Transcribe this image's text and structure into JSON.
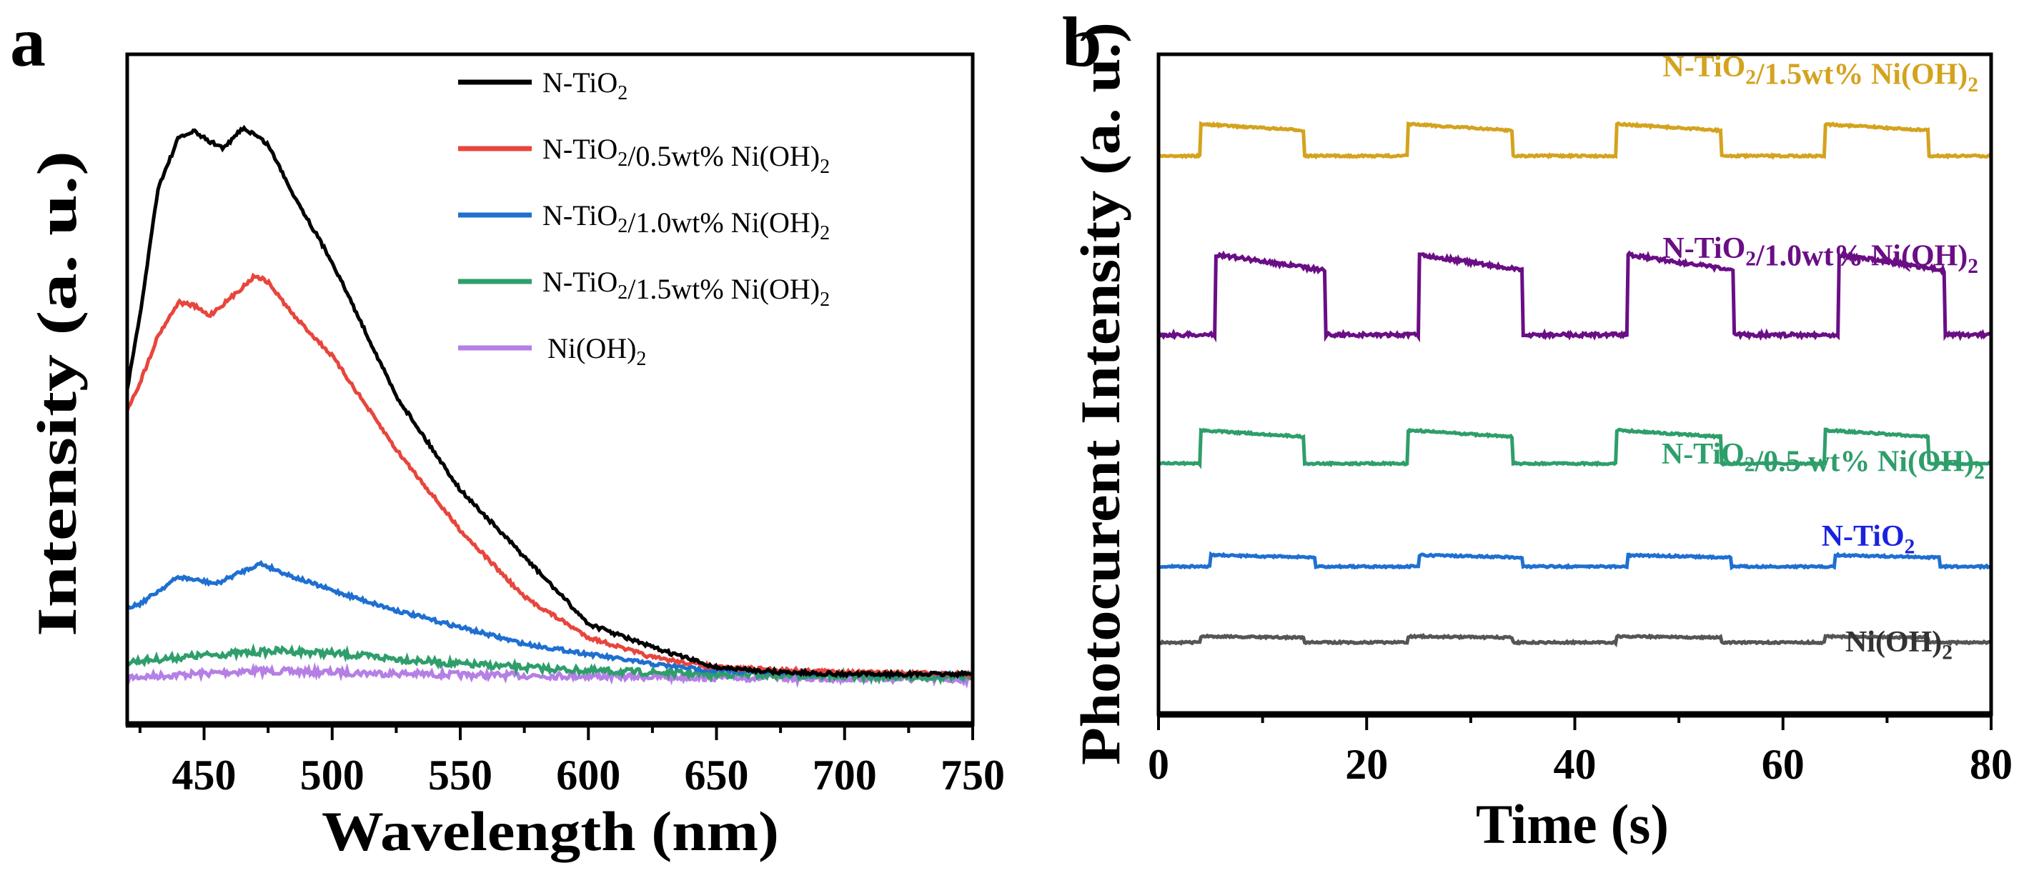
{
  "chart_data": [
    {
      "panel_label": "a",
      "type": "line",
      "xlabel": "Wavelength (nm)",
      "ylabel": "Intensity (a. u.)",
      "xlim": [
        420,
        750
      ],
      "ylim": [
        0,
        100
      ],
      "xticks": [
        450,
        500,
        550,
        600,
        650,
        700,
        750
      ],
      "legend_position": "top-right",
      "series": [
        {
          "name": "N-TiO2",
          "color": "#000000",
          "x": [
            420,
            425,
            432,
            440,
            446,
            452,
            458,
            465,
            470,
            475,
            485,
            500,
            525,
            550,
            575,
            600,
            625,
            650,
            675,
            700,
            750
          ],
          "y": [
            50,
            61,
            80,
            87.5,
            88.5,
            87,
            86,
            89,
            88,
            86.5,
            79,
            69,
            49,
            35,
            25,
            15,
            11.5,
            8.5,
            7.8,
            7.5,
            7.5
          ]
        },
        {
          "name": "N-TiO2/0.5wt% Ni(OH)2",
          "color": "#E8453C",
          "x": [
            420,
            425,
            432,
            440,
            446,
            452,
            460,
            470,
            475,
            485,
            500,
            525,
            550,
            575,
            600,
            625,
            650,
            700,
            750
          ],
          "y": [
            47,
            51,
            58,
            63,
            62.5,
            61,
            63.5,
            67,
            66,
            61,
            55,
            41,
            29,
            19,
            13,
            10,
            8.5,
            7.8,
            7.5
          ]
        },
        {
          "name": "N-TiO2/1.0wt% Ni(OH)2",
          "color": "#1F6FD1",
          "x": [
            420,
            425,
            440,
            455,
            463,
            472,
            485,
            500,
            525,
            550,
            575,
            600,
            625,
            650,
            700,
            750
          ],
          "y": [
            17.5,
            18,
            22,
            21,
            22.5,
            24,
            22,
            20,
            17,
            14.5,
            12,
            10.5,
            9,
            8,
            7.6,
            7.5
          ]
        },
        {
          "name": "N-TiO2/1.5wt% Ni(OH)2",
          "color": "#2E9E6B",
          "x": [
            420,
            425,
            450,
            480,
            500,
            525,
            550,
            575,
            600,
            650,
            700,
            750
          ],
          "y": [
            9.3,
            9.5,
            10.3,
            11,
            10.6,
            9.8,
            9,
            8.5,
            8,
            7.5,
            7.2,
            7
          ]
        },
        {
          "name": "Ni(OH)2",
          "color": "#B57FE6",
          "x": [
            420,
            470,
            550,
            650,
            750
          ],
          "y": [
            7,
            8,
            7.4,
            7,
            6.7
          ]
        }
      ]
    },
    {
      "panel_label": "b",
      "type": "line",
      "xlabel": "Time (s)",
      "ylabel": "Photocurent Intensity (a. u.)",
      "xlim": [
        0,
        80
      ],
      "ylim": [
        0,
        100
      ],
      "xticks": [
        0,
        20,
        40,
        60,
        80
      ],
      "series": [
        {
          "name": "N-TiO2/1.5wt% Ni(OH)2",
          "color": "#D4A31E",
          "base": 84.6,
          "high": 88.8,
          "on_intervals": [
            [
              4,
              14
            ],
            [
              24,
              34
            ],
            [
              44,
              54
            ],
            [
              64,
              74
            ]
          ]
        },
        {
          "name": "N-TiO2/1.0wt% Ni(OH)2",
          "color": "#6A0E85",
          "base": 57.5,
          "high": 68.1,
          "on_intervals": [
            [
              5.5,
              16
            ],
            [
              25,
              35
            ],
            [
              45,
              55.3
            ],
            [
              65.3,
              75.5
            ]
          ]
        },
        {
          "name": "N-TiO2/0.5 wt% Ni(OH)2",
          "color": "#2E9E6B",
          "base": 38,
          "high": 42.4,
          "on_intervals": [
            [
              4,
              14
            ],
            [
              24,
              34
            ],
            [
              44,
              54
            ],
            [
              64,
              74
            ]
          ]
        },
        {
          "name": "N-TiO2",
          "color": "#1F6FD1",
          "label_color": "#1A22E0",
          "base": 22.4,
          "high": 23.9,
          "on_intervals": [
            [
              5,
              15
            ],
            [
              25,
              35
            ],
            [
              45,
              55
            ],
            [
              65,
              75
            ]
          ]
        },
        {
          "name": "Ni(OH)2",
          "color": "#555555",
          "label_color": "#333333",
          "base": 10.9,
          "high": 11.7,
          "on_intervals": [
            [
              4,
              14
            ],
            [
              24,
              34
            ],
            [
              44,
              54
            ],
            [
              64,
              74
            ]
          ]
        }
      ]
    }
  ]
}
